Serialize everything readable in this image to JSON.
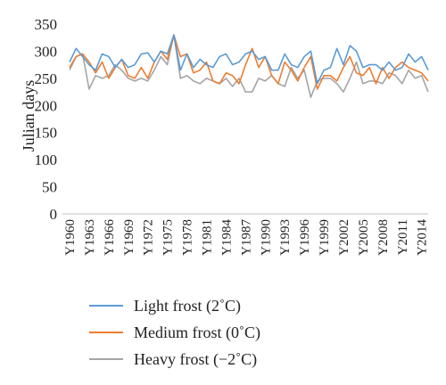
{
  "chart_data": {
    "type": "line",
    "title": "",
    "xlabel": "",
    "ylabel": "Julian days",
    "ylim": [
      0,
      350
    ],
    "yticks": [
      0,
      50,
      100,
      150,
      200,
      250,
      300,
      350
    ],
    "grid": false,
    "legend_position": "bottom",
    "x_labels": [
      "Y1960",
      "Y1963",
      "Y1966",
      "Y1969",
      "Y1972",
      "Y1975",
      "Y1978",
      "Y1981",
      "Y1984",
      "Y1987",
      "Y1990",
      "Y1993",
      "Y1996",
      "Y1999",
      "Y2002",
      "Y2005",
      "Y2008",
      "Y2011",
      "Y2014"
    ],
    "x": [
      1960,
      1961,
      1962,
      1963,
      1964,
      1965,
      1966,
      1967,
      1968,
      1969,
      1970,
      1971,
      1972,
      1973,
      1974,
      1975,
      1976,
      1977,
      1978,
      1979,
      1980,
      1981,
      1982,
      1983,
      1984,
      1985,
      1986,
      1987,
      1988,
      1989,
      1990,
      1991,
      1992,
      1993,
      1994,
      1995,
      1996,
      1997,
      1998,
      1999,
      2000,
      2001,
      2002,
      2003,
      2004,
      2005,
      2006,
      2007,
      2008,
      2009,
      2010,
      2011,
      2012,
      2013,
      2014,
      2015
    ],
    "series": [
      {
        "name": "Light frost (2˚C)",
        "color": "#5b9bd5",
        "values": [
          280,
          305,
          290,
          275,
          265,
          295,
          290,
          270,
          285,
          270,
          275,
          295,
          297,
          280,
          300,
          295,
          330,
          265,
          295,
          270,
          285,
          275,
          270,
          290,
          295,
          275,
          280,
          295,
          300,
          285,
          290,
          265,
          265,
          295,
          275,
          270,
          290,
          300,
          240,
          265,
          270,
          305,
          275,
          310,
          300,
          270,
          275,
          275,
          265,
          280,
          265,
          270,
          295,
          280,
          290,
          265
        ]
      },
      {
        "name": "Medium frost (0˚C)",
        "color": "#ed7d31",
        "values": [
          270,
          290,
          295,
          280,
          260,
          280,
          250,
          270,
          285,
          255,
          250,
          270,
          250,
          280,
          300,
          285,
          330,
          290,
          295,
          260,
          265,
          280,
          245,
          240,
          260,
          255,
          240,
          275,
          305,
          270,
          290,
          255,
          240,
          280,
          265,
          245,
          270,
          290,
          230,
          255,
          255,
          245,
          270,
          290,
          260,
          255,
          270,
          240,
          270,
          250,
          270,
          280,
          270,
          265,
          260,
          245
        ]
      },
      {
        "name": "Heavy frost (−2˚C)",
        "color": "#a5a5a5",
        "values": [
          265,
          290,
          295,
          230,
          255,
          250,
          255,
          275,
          265,
          250,
          245,
          250,
          245,
          265,
          290,
          275,
          330,
          250,
          255,
          245,
          240,
          250,
          245,
          240,
          250,
          235,
          250,
          225,
          225,
          250,
          245,
          255,
          240,
          235,
          270,
          250,
          265,
          215,
          245,
          250,
          250,
          240,
          225,
          250,
          280,
          240,
          245,
          245,
          240,
          260,
          255,
          240,
          265,
          250,
          255,
          225
        ]
      }
    ]
  }
}
